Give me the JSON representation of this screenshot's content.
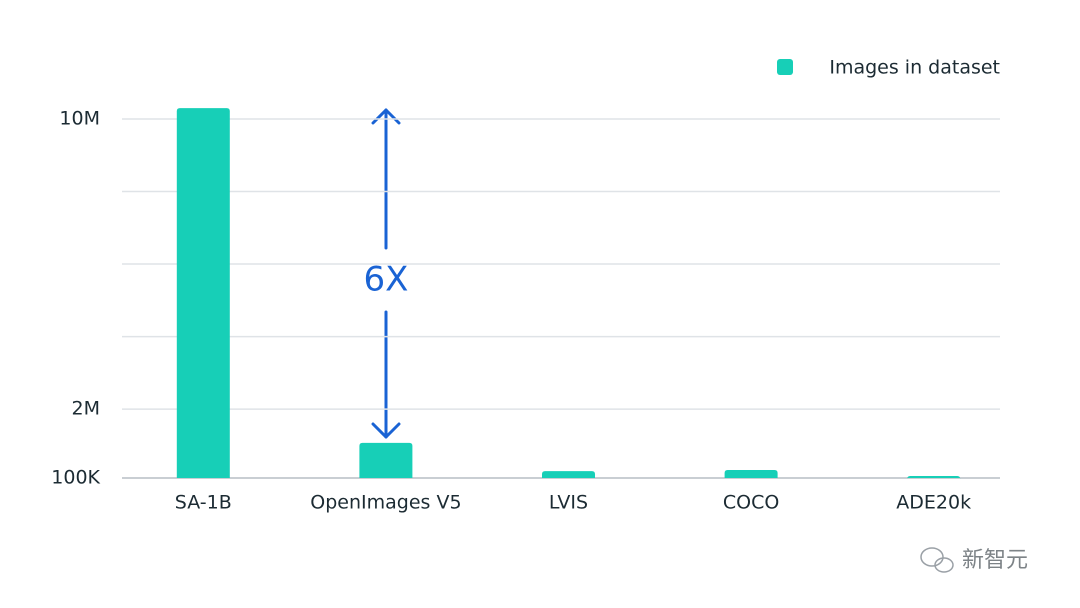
{
  "chart_data": {
    "type": "bar",
    "series": [
      {
        "name": "Images in dataset",
        "color": "#17cfb7",
        "values": [
          10300000,
          1070000,
          290000,
          320000,
          155000
        ]
      }
    ],
    "categories": [
      "SA-1B",
      "OpenImages V5",
      "LVIS",
      "COCO",
      "ADE20k"
    ],
    "ylim": [
      100000,
      10000000
    ],
    "yticks": [
      {
        "value": 100000,
        "label": "100K"
      },
      {
        "value": 2000000,
        "label": "2M"
      },
      {
        "value": 4000000,
        "label": null
      },
      {
        "value": 6000000,
        "label": null
      },
      {
        "value": 8000000,
        "label": null
      },
      {
        "value": 10000000,
        "label": "10M"
      }
    ],
    "grid": true,
    "legend": "top-right",
    "annotation": "6X",
    "watermark": "新智元"
  }
}
